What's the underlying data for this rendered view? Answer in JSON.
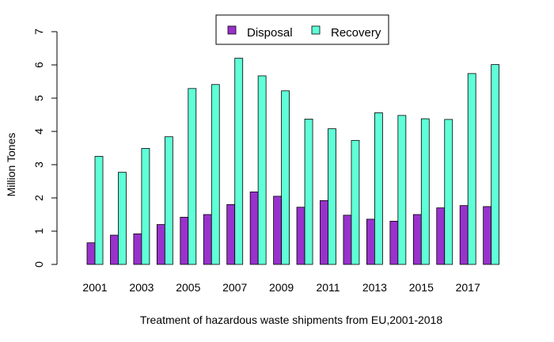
{
  "chart_data": {
    "type": "bar",
    "xlabel": "Treatment of hazardous waste shipments from EU,2001-2018",
    "ylabel": "Million Tones",
    "ylim": [
      0,
      7
    ],
    "yticks": [
      0,
      1,
      2,
      3,
      4,
      5,
      6,
      7
    ],
    "grid": false,
    "legend_position": "top-center",
    "categories": [
      "2001",
      "2002",
      "2003",
      "2004",
      "2005",
      "2006",
      "2007",
      "2008",
      "2009",
      "2010",
      "2011",
      "2012",
      "2013",
      "2014",
      "2015",
      "2016",
      "2017",
      "2018"
    ],
    "xtick_labels": [
      "2001",
      "",
      "2003",
      "",
      "2005",
      "",
      "2007",
      "",
      "2009",
      "",
      "2011",
      "",
      "2013",
      "",
      "2015",
      "",
      "2017",
      ""
    ],
    "series": [
      {
        "name": "Disposal",
        "color": "#9932CC",
        "values": [
          0.65,
          0.88,
          0.92,
          1.2,
          1.42,
          1.5,
          1.8,
          2.18,
          2.05,
          1.72,
          1.92,
          1.48,
          1.36,
          1.3,
          1.5,
          1.7,
          1.77,
          1.74
        ]
      },
      {
        "name": "Recovery",
        "color": "#5FFFD7",
        "values": [
          3.25,
          2.77,
          3.49,
          3.84,
          5.29,
          5.41,
          6.2,
          5.67,
          5.22,
          4.37,
          4.08,
          3.73,
          4.56,
          4.48,
          4.38,
          4.36,
          5.74,
          6.01
        ]
      }
    ]
  }
}
